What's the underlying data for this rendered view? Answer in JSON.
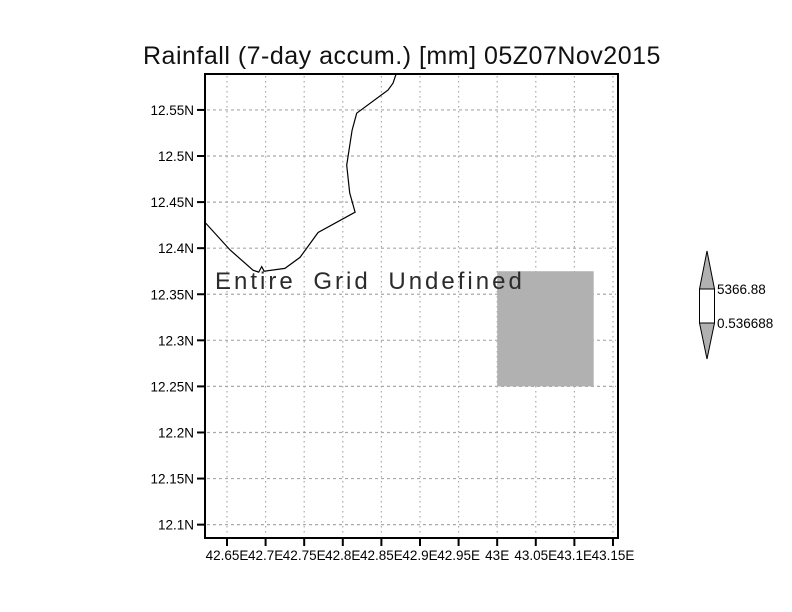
{
  "chart_data": {
    "type": "heatmap",
    "title": "Rainfall (7-day accum.) [mm] 05Z07Nov2015",
    "annotation": "Entire Grid Undefined",
    "xlabel": "",
    "ylabel": "",
    "grid": true,
    "x_range": [
      42.6215,
      43.1565
    ],
    "y_range": [
      12.0855,
      12.589
    ],
    "x_tick_values": [
      42.65,
      42.7,
      42.75,
      42.8,
      42.85,
      42.9,
      42.95,
      43.0,
      43.05,
      43.1,
      43.15
    ],
    "x_tick_labels": [
      "42.65E",
      "42.7E",
      "42.75E",
      "42.8E",
      "42.85E",
      "42.9E",
      "42.95E",
      "43E",
      "43.05E",
      "43.1E",
      "43.15E"
    ],
    "y_tick_values": [
      12.55,
      12.5,
      12.45,
      12.4,
      12.35,
      12.3,
      12.25,
      12.2,
      12.15,
      12.1
    ],
    "y_tick_labels": [
      "12.55N",
      "12.5N",
      "12.45N",
      "12.4N",
      "12.35N",
      "12.3N",
      "12.25N",
      "12.2N",
      "12.15N",
      "12.1N"
    ],
    "undefined_region": {
      "lon_min": 43.0,
      "lon_max": 43.125,
      "lat_min": 12.25,
      "lat_max": 12.375,
      "color": "#b1b1b1"
    },
    "coastline": [
      [
        42.6215,
        12.428
      ],
      [
        42.654,
        12.398
      ],
      [
        42.684,
        12.376
      ],
      [
        42.691,
        12.374
      ],
      [
        42.695,
        12.38
      ],
      [
        42.698,
        12.375
      ],
      [
        42.725,
        12.378
      ],
      [
        42.7445,
        12.39
      ],
      [
        42.768,
        12.417
      ],
      [
        42.816,
        12.439
      ],
      [
        42.809,
        12.46
      ],
      [
        42.805,
        12.49
      ],
      [
        42.812,
        12.528
      ],
      [
        42.818,
        12.5465
      ],
      [
        42.8585,
        12.5715
      ],
      [
        42.865,
        12.579
      ],
      [
        42.869,
        12.589
      ]
    ],
    "colorbar": {
      "position": "right",
      "max_label": "5366.88",
      "min_label": "0.536688",
      "triangle_color": "#b1b1b1",
      "box_color": "#ffffff"
    },
    "colors": {
      "grid": "#a9a9a9",
      "frame": "#000000",
      "background": "#ffffff",
      "text": "#000000"
    }
  }
}
